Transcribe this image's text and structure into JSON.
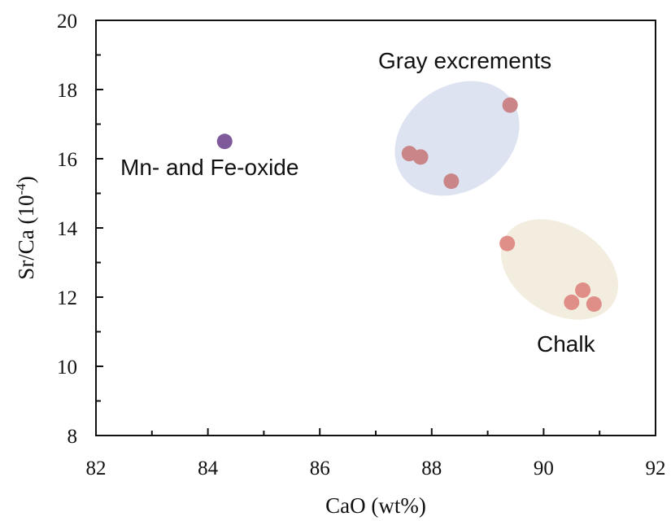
{
  "chart_data": {
    "type": "scatter",
    "title": "",
    "xlabel": "CaO (wt%)",
    "ylabel_main": "Sr/Ca (10",
    "ylabel_sup": "-4",
    "ylabel_close": ")",
    "xlim": [
      82,
      92
    ],
    "ylim": [
      8,
      20
    ],
    "xticks": [
      "82",
      "84",
      "86",
      "88",
      "90",
      "92"
    ],
    "yticks": [
      "8",
      "10",
      "12",
      "14",
      "16",
      "18",
      "20"
    ],
    "grid": false,
    "groups": [
      {
        "label": "Mn- and Fe-oxide",
        "color": "#7e5a9b",
        "points": [
          {
            "x": 84.3,
            "y": 16.5
          }
        ]
      },
      {
        "label": "Gray excrements",
        "color": "#c98588",
        "region_color": "#dde3f1",
        "points": [
          {
            "x": 89.4,
            "y": 17.55
          },
          {
            "x": 87.6,
            "y": 16.15
          },
          {
            "x": 87.8,
            "y": 16.05
          },
          {
            "x": 88.35,
            "y": 15.35
          }
        ]
      },
      {
        "label": "Chalk",
        "color": "#e08e88",
        "region_color": "#f3eddf",
        "points": [
          {
            "x": 89.35,
            "y": 13.55
          },
          {
            "x": 90.7,
            "y": 12.2
          },
          {
            "x": 90.5,
            "y": 11.85
          },
          {
            "x": 90.9,
            "y": 11.8
          }
        ]
      }
    ]
  }
}
